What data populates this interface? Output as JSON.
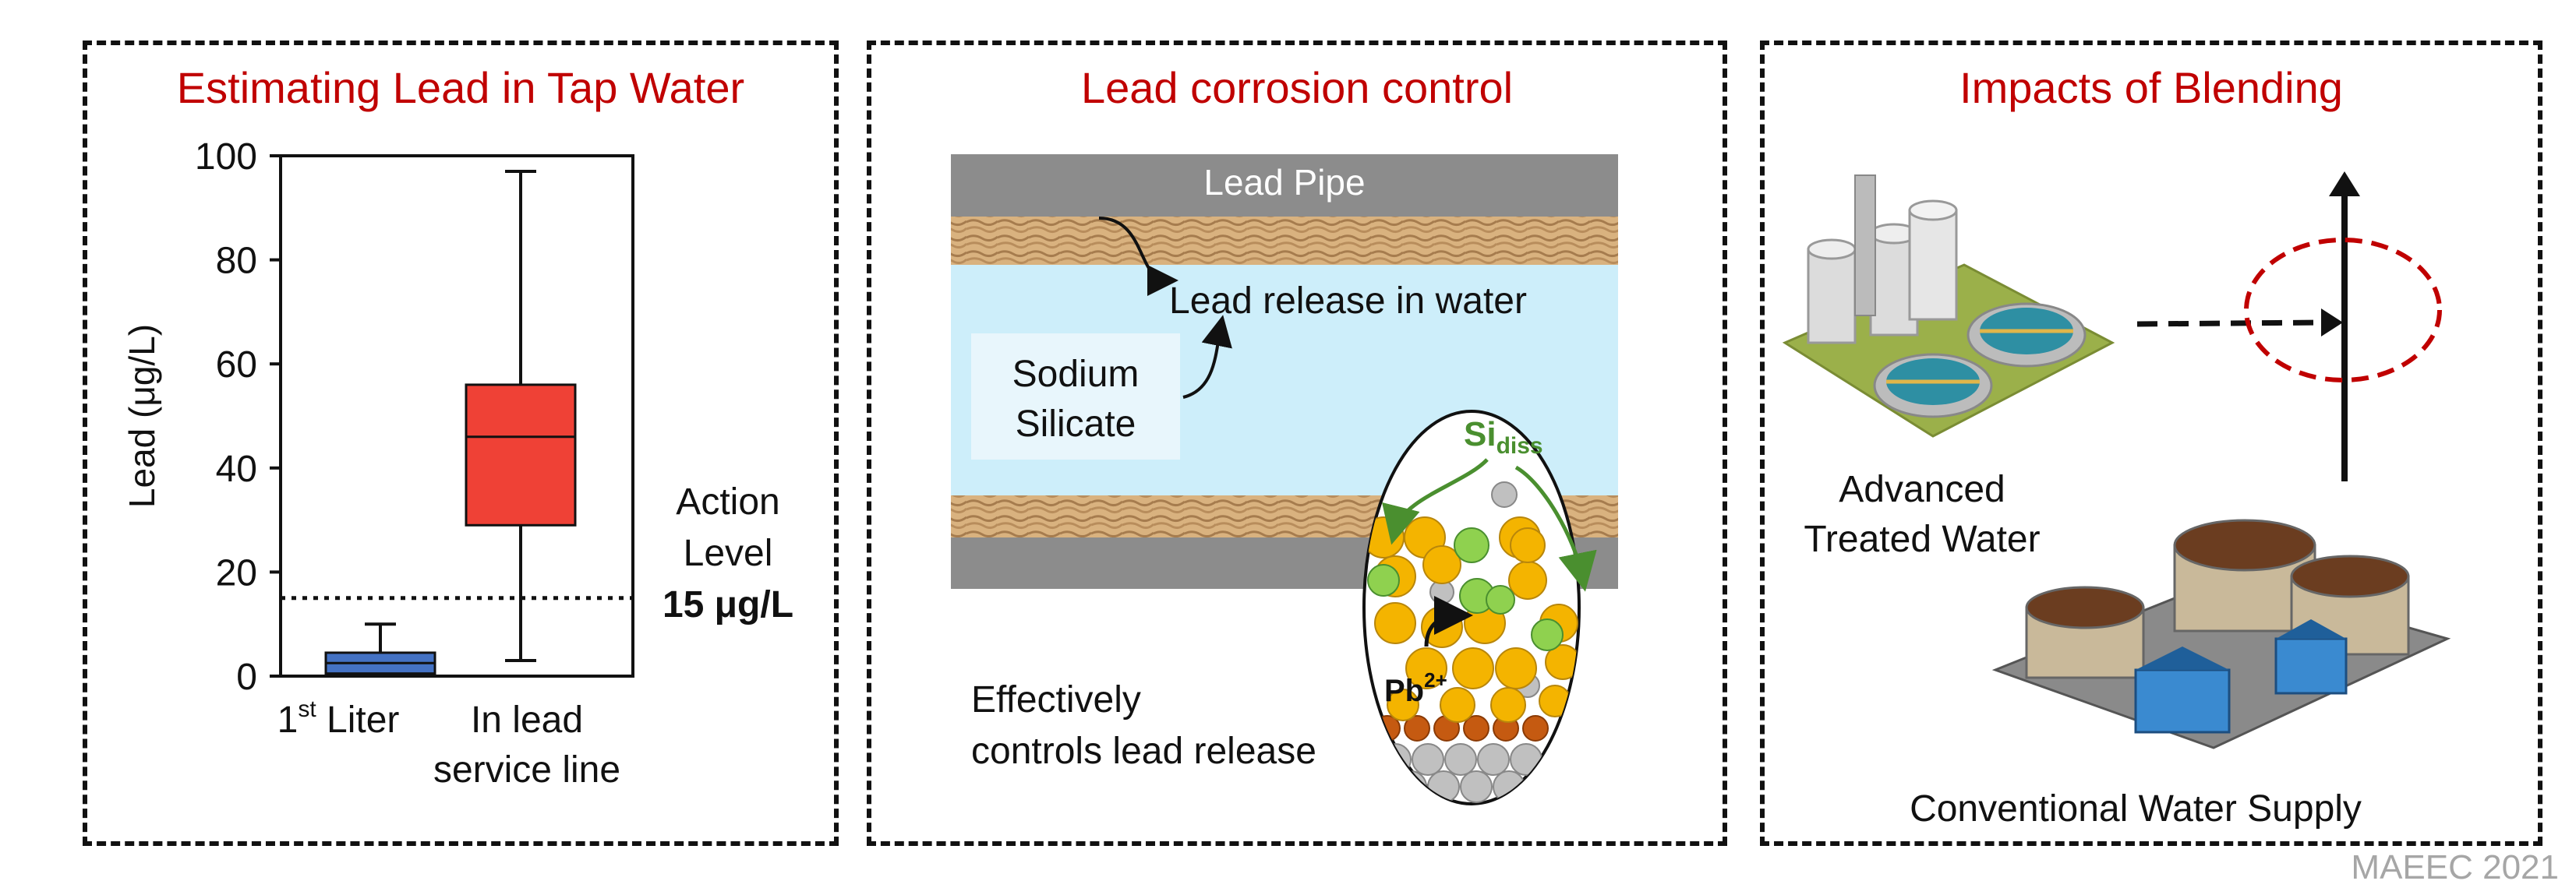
{
  "panels": {
    "left": {
      "title": "Estimating Lead in Tap Water"
    },
    "middle": {
      "title": "Lead corrosion control"
    },
    "right": {
      "title": "Impacts of Blending"
    }
  },
  "chart_data": {
    "type": "box",
    "ylabel": "Lead (μg/L)",
    "ylim": [
      0,
      100
    ],
    "yticks": [
      0,
      20,
      40,
      60,
      80,
      100
    ],
    "categories": [
      "1st Liter",
      "In lead service line"
    ],
    "category_display": [
      {
        "main": "1",
        "sup": "st",
        "rest": " Liter"
      },
      {
        "line1": "In lead",
        "line2": "service line"
      }
    ],
    "boxes": [
      {
        "category": "1st Liter",
        "whisker_low": 0.5,
        "q1": 0.5,
        "median": 2.5,
        "q3": 4.5,
        "whisker_high": 10,
        "color": "#4472c4"
      },
      {
        "category": "In lead service line",
        "whisker_low": 3,
        "q1": 29,
        "median": 46,
        "q3": 56,
        "whisker_high": 97,
        "color": "#ef4136"
      }
    ],
    "reference_line": {
      "value": 15,
      "style": "dotted",
      "label_line1": "Action",
      "label_line2": "Level",
      "label_value": "15 μg/L"
    }
  },
  "middle": {
    "pipe_label": "Lead Pipe",
    "release_label": "Lead release in water",
    "silicate_line1": "Sodium",
    "silicate_line2": "Silicate",
    "si_label": "Si",
    "si_sub": "diss",
    "pb_label": "Pb",
    "pb_sup": "2+",
    "effect_line1": "Effectively",
    "effect_line2": "controls lead release"
  },
  "right": {
    "advanced_line1": "Advanced",
    "advanced_line2": "Treated Water",
    "conventional": "Conventional Water Supply"
  },
  "footer": "MAEEC 2021",
  "colors": {
    "title_red": "#c00000",
    "box_red": "#ef4136",
    "box_blue": "#4472c4",
    "water": "#cdeefa",
    "pipe_gray": "#8c8c8c"
  }
}
